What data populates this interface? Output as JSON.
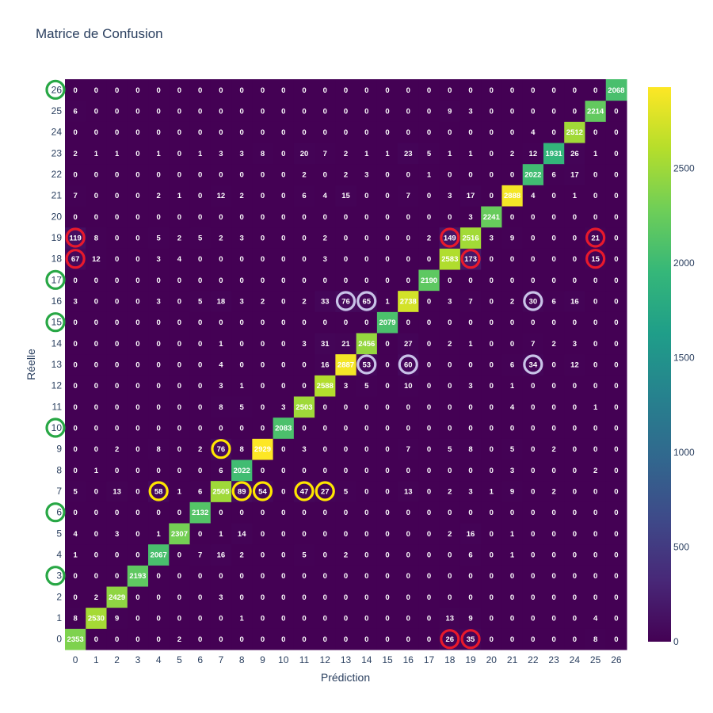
{
  "chart_data": {
    "type": "heatmap",
    "title": "Matrice de Confusion",
    "xlabel": "Prédiction",
    "ylabel": "Réelle",
    "colorscale": "viridis",
    "zrange": [
      0,
      2929
    ],
    "colorbar_ticks": [
      0,
      500,
      1000,
      1500,
      2000,
      2500
    ],
    "x": [
      0,
      1,
      2,
      3,
      4,
      5,
      6,
      7,
      8,
      9,
      10,
      11,
      12,
      13,
      14,
      15,
      16,
      17,
      18,
      19,
      20,
      21,
      22,
      23,
      24,
      25,
      26
    ],
    "y": [
      0,
      1,
      2,
      3,
      4,
      5,
      6,
      7,
      8,
      9,
      10,
      11,
      12,
      13,
      14,
      15,
      16,
      17,
      18,
      19,
      20,
      21,
      22,
      23,
      24,
      25,
      26
    ],
    "z": [
      [
        2353,
        0,
        0,
        0,
        0,
        2,
        0,
        0,
        0,
        0,
        0,
        0,
        0,
        0,
        0,
        0,
        0,
        0,
        26,
        35,
        0,
        0,
        0,
        0,
        0,
        8,
        0
      ],
      [
        8,
        2530,
        9,
        0,
        0,
        0,
        0,
        0,
        1,
        0,
        0,
        0,
        0,
        0,
        0,
        0,
        0,
        0,
        13,
        9,
        0,
        0,
        0,
        0,
        0,
        4,
        0
      ],
      [
        0,
        2,
        2429,
        0,
        0,
        0,
        0,
        3,
        0,
        0,
        0,
        0,
        0,
        0,
        0,
        0,
        0,
        0,
        0,
        0,
        0,
        0,
        0,
        0,
        0,
        0,
        0
      ],
      [
        0,
        0,
        0,
        2193,
        0,
        0,
        0,
        0,
        0,
        0,
        0,
        0,
        0,
        0,
        0,
        0,
        0,
        0,
        0,
        0,
        0,
        0,
        0,
        0,
        0,
        0,
        0
      ],
      [
        1,
        0,
        0,
        0,
        2067,
        0,
        7,
        16,
        2,
        0,
        0,
        5,
        0,
        2,
        0,
        0,
        0,
        0,
        0,
        6,
        0,
        1,
        0,
        0,
        0,
        0,
        0
      ],
      [
        4,
        0,
        3,
        0,
        1,
        2307,
        0,
        1,
        14,
        0,
        0,
        0,
        0,
        0,
        0,
        0,
        0,
        0,
        2,
        16,
        0,
        1,
        0,
        0,
        0,
        0,
        0
      ],
      [
        0,
        0,
        0,
        0,
        0,
        0,
        2132,
        0,
        0,
        0,
        0,
        0,
        0,
        0,
        0,
        0,
        0,
        0,
        0,
        0,
        0,
        0,
        0,
        0,
        0,
        0,
        0
      ],
      [
        5,
        0,
        13,
        0,
        58,
        1,
        6,
        2505,
        89,
        54,
        0,
        47,
        27,
        5,
        0,
        0,
        13,
        0,
        2,
        3,
        1,
        9,
        0,
        2,
        0,
        0,
        0
      ],
      [
        0,
        1,
        0,
        0,
        0,
        0,
        0,
        6,
        2022,
        0,
        0,
        0,
        0,
        0,
        0,
        0,
        0,
        0,
        0,
        0,
        0,
        3,
        0,
        0,
        0,
        2,
        0
      ],
      [
        0,
        0,
        2,
        0,
        8,
        0,
        2,
        76,
        8,
        2929,
        0,
        3,
        0,
        0,
        0,
        0,
        7,
        0,
        5,
        8,
        0,
        5,
        0,
        2,
        0,
        0,
        0
      ],
      [
        0,
        0,
        0,
        0,
        0,
        0,
        0,
        0,
        0,
        0,
        2083,
        0,
        0,
        0,
        0,
        0,
        0,
        0,
        0,
        0,
        0,
        0,
        0,
        0,
        0,
        0,
        0
      ],
      [
        0,
        0,
        0,
        0,
        0,
        0,
        0,
        8,
        5,
        0,
        3,
        2503,
        0,
        0,
        0,
        0,
        0,
        0,
        0,
        0,
        0,
        4,
        0,
        0,
        0,
        1,
        0
      ],
      [
        0,
        0,
        0,
        0,
        0,
        0,
        0,
        3,
        1,
        0,
        0,
        0,
        2588,
        3,
        5,
        0,
        10,
        0,
        0,
        3,
        0,
        1,
        0,
        0,
        0,
        0,
        0
      ],
      [
        0,
        0,
        0,
        0,
        0,
        0,
        0,
        4,
        0,
        0,
        0,
        0,
        16,
        2887,
        53,
        0,
        60,
        0,
        0,
        0,
        0,
        6,
        34,
        0,
        12,
        0,
        0
      ],
      [
        0,
        0,
        0,
        0,
        0,
        0,
        0,
        1,
        0,
        0,
        0,
        3,
        31,
        21,
        2456,
        0,
        27,
        0,
        2,
        1,
        0,
        0,
        7,
        2,
        3,
        0,
        0
      ],
      [
        0,
        0,
        0,
        0,
        0,
        0,
        0,
        0,
        0,
        0,
        0,
        0,
        0,
        0,
        0,
        2079,
        0,
        0,
        0,
        0,
        0,
        0,
        0,
        0,
        0,
        0,
        0
      ],
      [
        3,
        0,
        0,
        0,
        3,
        0,
        5,
        18,
        3,
        2,
        0,
        2,
        33,
        76,
        65,
        1,
        2738,
        0,
        3,
        7,
        0,
        2,
        30,
        6,
        16,
        0,
        0
      ],
      [
        0,
        0,
        0,
        0,
        0,
        0,
        0,
        0,
        0,
        0,
        0,
        0,
        0,
        0,
        0,
        0,
        0,
        2190,
        0,
        0,
        0,
        0,
        0,
        0,
        0,
        0,
        0
      ],
      [
        67,
        12,
        0,
        0,
        3,
        4,
        0,
        0,
        0,
        0,
        0,
        0,
        3,
        0,
        0,
        0,
        0,
        0,
        2583,
        173,
        0,
        0,
        0,
        0,
        0,
        15,
        0
      ],
      [
        119,
        8,
        0,
        0,
        5,
        2,
        5,
        2,
        3,
        0,
        0,
        0,
        2,
        0,
        0,
        0,
        0,
        2,
        149,
        2516,
        3,
        9,
        0,
        0,
        0,
        21,
        0
      ],
      [
        0,
        0,
        0,
        0,
        0,
        0,
        0,
        0,
        0,
        0,
        0,
        0,
        0,
        0,
        0,
        0,
        0,
        0,
        0,
        3,
        2241,
        0,
        0,
        0,
        0,
        0,
        0
      ],
      [
        7,
        0,
        0,
        0,
        2,
        1,
        0,
        12,
        2,
        0,
        0,
        6,
        4,
        15,
        0,
        0,
        7,
        0,
        3,
        17,
        0,
        2888,
        4,
        0,
        1,
        0,
        0
      ],
      [
        0,
        0,
        0,
        0,
        0,
        0,
        0,
        0,
        0,
        0,
        0,
        2,
        0,
        2,
        3,
        0,
        0,
        1,
        0,
        0,
        0,
        0,
        2022,
        6,
        17,
        0,
        0
      ],
      [
        2,
        1,
        1,
        0,
        1,
        0,
        1,
        3,
        3,
        8,
        0,
        20,
        7,
        2,
        1,
        1,
        23,
        5,
        1,
        1,
        0,
        2,
        12,
        1931,
        26,
        1,
        0
      ],
      [
        0,
        0,
        0,
        0,
        0,
        0,
        0,
        0,
        0,
        0,
        0,
        0,
        0,
        0,
        0,
        0,
        0,
        0,
        0,
        0,
        0,
        0,
        4,
        0,
        2512,
        0,
        0
      ],
      [
        6,
        0,
        0,
        0,
        0,
        0,
        0,
        0,
        0,
        0,
        0,
        0,
        0,
        0,
        0,
        0,
        0,
        0,
        9,
        3,
        0,
        0,
        0,
        0,
        0,
        2214,
        0
      ],
      [
        0,
        0,
        0,
        0,
        0,
        0,
        0,
        0,
        0,
        0,
        0,
        0,
        0,
        0,
        0,
        0,
        0,
        0,
        0,
        0,
        0,
        0,
        0,
        0,
        0,
        0,
        2068
      ]
    ],
    "tick_circles": [
      {
        "y": 26,
        "color": "#28a745"
      },
      {
        "y": 17,
        "color": "#28a745"
      },
      {
        "y": 15,
        "color": "#28a745"
      },
      {
        "y": 10,
        "color": "#28a745"
      },
      {
        "y": 6,
        "color": "#28a745"
      },
      {
        "y": 3,
        "color": "#28a745"
      }
    ],
    "cell_circles": [
      {
        "x": 0,
        "y": 19,
        "color": "#e8192c"
      },
      {
        "x": 18,
        "y": 19,
        "color": "#e8192c"
      },
      {
        "x": 25,
        "y": 19,
        "color": "#e8192c"
      },
      {
        "x": 0,
        "y": 18,
        "color": "#e8192c"
      },
      {
        "x": 19,
        "y": 18,
        "color": "#e8192c"
      },
      {
        "x": 25,
        "y": 18,
        "color": "#e8192c"
      },
      {
        "x": 18,
        "y": 0,
        "color": "#e8192c"
      },
      {
        "x": 19,
        "y": 0,
        "color": "#e8192c"
      },
      {
        "x": 13,
        "y": 16,
        "color": "#c9c3e8"
      },
      {
        "x": 14,
        "y": 16,
        "color": "#c9c3e8"
      },
      {
        "x": 22,
        "y": 16,
        "color": "#c9c3e8"
      },
      {
        "x": 14,
        "y": 13,
        "color": "#c9c3e8"
      },
      {
        "x": 16,
        "y": 13,
        "color": "#c9c3e8"
      },
      {
        "x": 22,
        "y": 13,
        "color": "#c9c3e8"
      },
      {
        "x": 7,
        "y": 9,
        "color": "#ffe600"
      },
      {
        "x": 4,
        "y": 7,
        "color": "#ffe600"
      },
      {
        "x": 8,
        "y": 7,
        "color": "#ffe600"
      },
      {
        "x": 9,
        "y": 7,
        "color": "#ffe600"
      },
      {
        "x": 11,
        "y": 7,
        "color": "#ffe600"
      },
      {
        "x": 12,
        "y": 7,
        "color": "#ffe600"
      }
    ]
  }
}
